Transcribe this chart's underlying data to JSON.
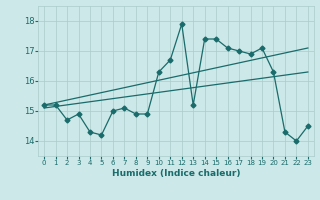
{
  "xlabel": "Humidex (Indice chaleur)",
  "bg_color": "#cce8e8",
  "grid_color": "#aacccc",
  "line_color": "#1a6b6b",
  "xlim": [
    -0.5,
    23.5
  ],
  "ylim": [
    13.5,
    18.5
  ],
  "yticks": [
    14,
    15,
    16,
    17,
    18
  ],
  "xticks": [
    0,
    1,
    2,
    3,
    4,
    5,
    6,
    7,
    8,
    9,
    10,
    11,
    12,
    13,
    14,
    15,
    16,
    17,
    18,
    19,
    20,
    21,
    22,
    23
  ],
  "series1_x": [
    0,
    1,
    2,
    3,
    4,
    5,
    6,
    7,
    8,
    9,
    10,
    11,
    12,
    13,
    14,
    15,
    16,
    17,
    18,
    19,
    20,
    21,
    22,
    23
  ],
  "series1_y": [
    15.2,
    15.2,
    14.7,
    14.9,
    14.3,
    14.2,
    15.0,
    15.1,
    14.9,
    14.9,
    16.3,
    16.7,
    17.9,
    15.2,
    17.4,
    17.4,
    17.1,
    17.0,
    16.9,
    17.1,
    16.3,
    14.3,
    14.0,
    14.5
  ],
  "series2_x": [
    0,
    23
  ],
  "series2_y": [
    15.2,
    17.1
  ],
  "series3_x": [
    0,
    23
  ],
  "series3_y": [
    15.1,
    16.3
  ]
}
